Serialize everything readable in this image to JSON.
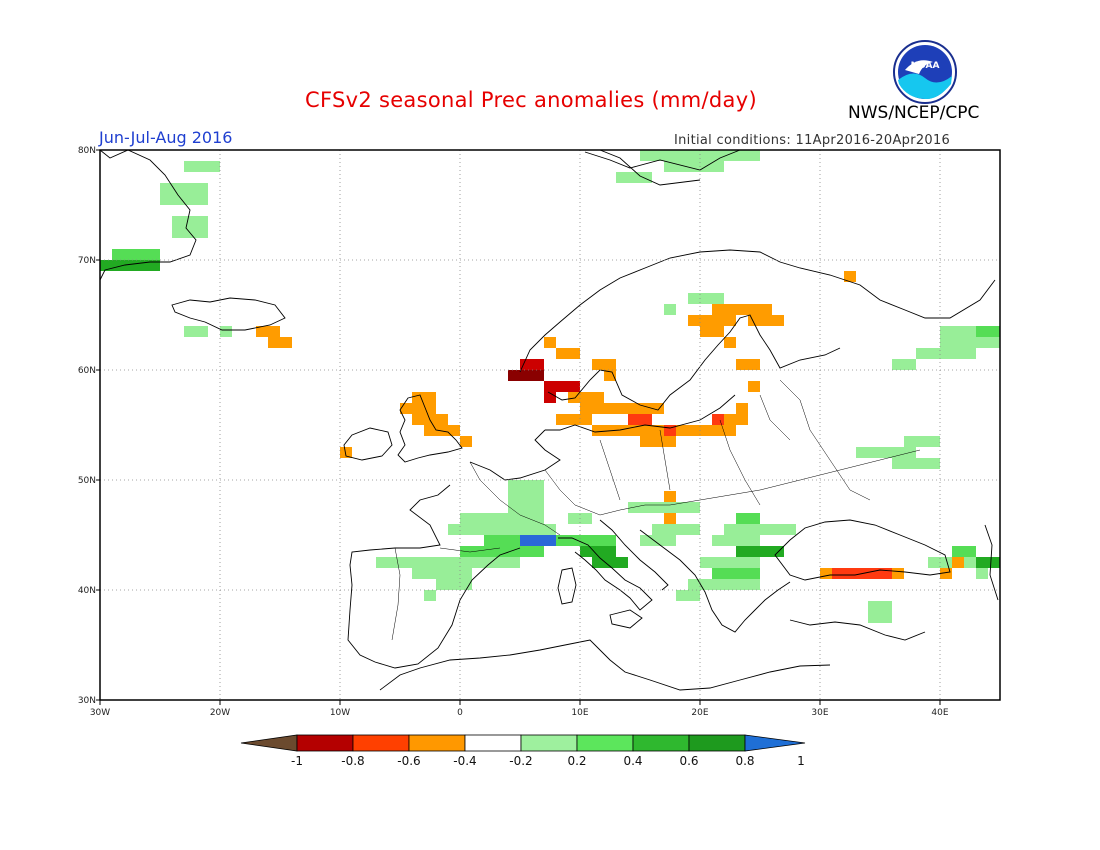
{
  "header": {
    "title": "CFSv2 seasonal Prec anomalies (mm/day)",
    "season": "Jun-Jul-Aug 2016",
    "initial_conditions": "Initial conditions: 11Apr2016-20Apr2016",
    "agency": "NWS/NCEP/CPC",
    "logo_text": "NOAA"
  },
  "map": {
    "lon_range": [
      -30,
      45
    ],
    "lat_range": [
      30,
      80
    ],
    "x_ticks": [
      "30W",
      "20W",
      "10W",
      "0",
      "10E",
      "20E",
      "30E",
      "40E"
    ],
    "y_ticks": [
      "30N",
      "40N",
      "50N",
      "60N",
      "70N",
      "80N"
    ],
    "grid": "dotted"
  },
  "colorbar": {
    "labels": [
      "-1",
      "-0.8",
      "-0.6",
      "-0.4",
      "-0.2",
      "0.2",
      "0.4",
      "0.6",
      "0.8",
      "1"
    ],
    "colors": [
      "#6b4a2e",
      "#b40000",
      "#ff4000",
      "#ff9800",
      "#ffffff",
      "#9ef09e",
      "#5ce65c",
      "#2fb82f",
      "#1e9a1e",
      "#1f6fd6"
    ]
  },
  "colors": {
    "title": "#e60000",
    "season": "#1f3fd0",
    "light_green": "#98ee98",
    "green": "#55dd55",
    "dark_green": "#22aa22",
    "orange": "#ff9c00",
    "red_orange": "#ff3a10",
    "red": "#cc0000",
    "dark_red": "#8a0000",
    "blue": "#2a68d8"
  }
}
